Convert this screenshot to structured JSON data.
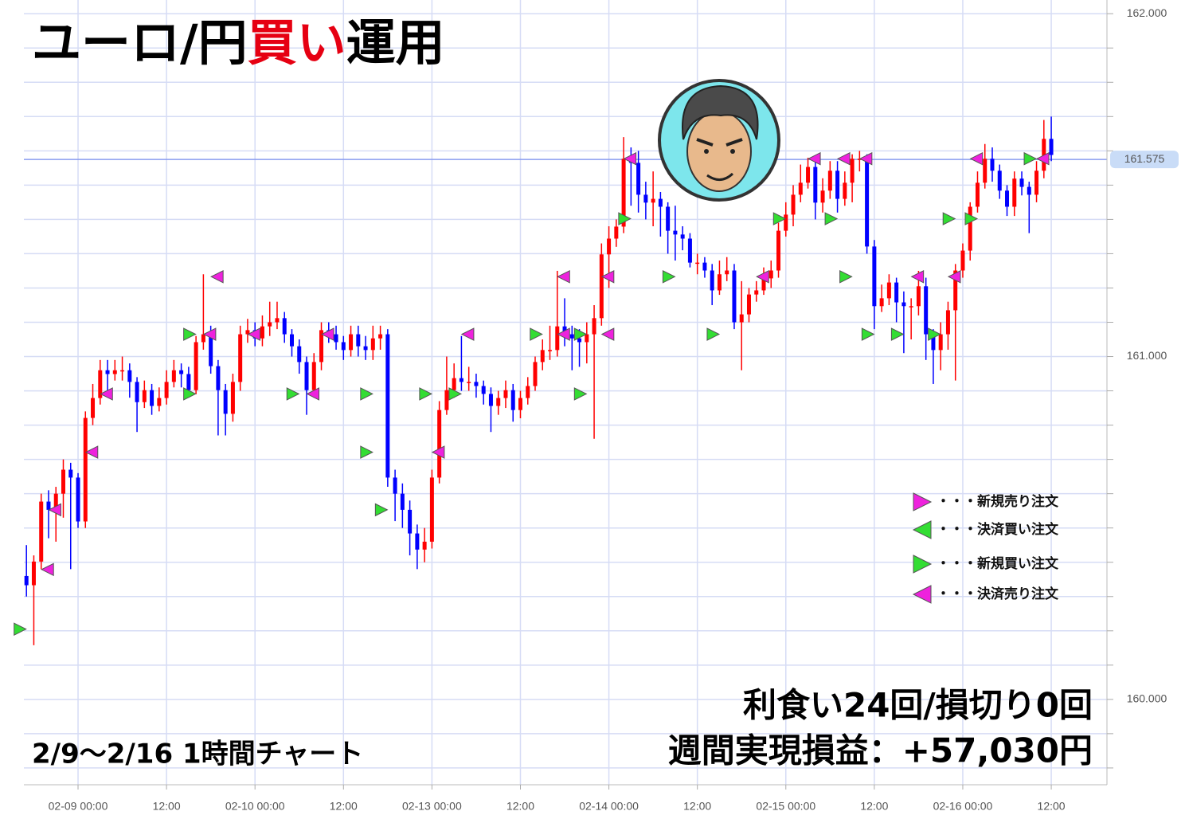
{
  "chart_data": {
    "type": "candlestick",
    "title": [
      {
        "text": "ユーロ/円",
        "color": "#000000"
      },
      {
        "text": "買い",
        "color": "#e60012"
      },
      {
        "text": "運用",
        "color": "#000000"
      }
    ],
    "annotations": [
      "利食い24回/損切り0回",
      "週間実現損益：+57,030円",
      "2/9～2/16 1時間チャート"
    ],
    "categories": [
      null,
      null,
      null,
      null,
      null,
      null,
      null,
      "02-09 00:00",
      null,
      null,
      null,
      null,
      null,
      null,
      null,
      null,
      null,
      null,
      null,
      "12:00",
      null,
      null,
      null,
      null,
      null,
      null,
      null,
      null,
      null,
      null,
      null,
      "02-10 00:00",
      null,
      null,
      null,
      null,
      null,
      null,
      null,
      null,
      null,
      null,
      null,
      "12:00",
      null,
      null,
      null,
      null,
      null,
      null,
      null,
      null,
      null,
      null,
      null,
      "02-13 00:00",
      null,
      null,
      null,
      null,
      null,
      null,
      null,
      null,
      null,
      null,
      null,
      "12:00",
      null,
      null,
      null,
      null,
      null,
      null,
      null,
      null,
      null,
      null,
      null,
      "02-14 00:00",
      null,
      null,
      null,
      null,
      null,
      null,
      null,
      null,
      null,
      null,
      null,
      "12:00",
      null,
      null,
      null,
      null,
      null,
      null,
      null,
      null,
      null,
      null,
      null,
      "02-15 00:00",
      null,
      null,
      null,
      null,
      null,
      null,
      null,
      null,
      null,
      null,
      null,
      "12:00",
      null,
      null,
      null,
      null,
      null,
      null,
      null,
      null,
      null,
      null,
      null,
      "02-16 00:00",
      null,
      null,
      null,
      null,
      null,
      null,
      null,
      null,
      null,
      null,
      null,
      "12:00"
    ],
    "open": [
      160.36,
      160.333,
      160.402,
      160.577,
      160.553,
      160.6,
      160.67,
      160.647,
      160.519,
      160.821,
      160.879,
      160.96,
      160.949,
      160.96,
      160.96,
      160.926,
      160.867,
      160.902,
      160.856,
      160.879,
      160.926,
      160.96,
      160.949,
      160.902,
      161.042,
      161.065,
      160.972,
      160.902,
      160.833,
      160.926,
      161.065,
      161.077,
      161.053,
      161.088,
      161.1,
      161.112,
      161.065,
      161.03,
      160.984,
      160.902,
      160.984,
      161.077,
      161.065,
      161.042,
      161.019,
      161.065,
      161.03,
      161.019,
      161.053,
      161.065,
      160.647,
      160.6,
      160.553,
      160.484,
      160.437,
      160.46,
      160.647,
      160.844,
      160.902,
      160.937,
      160.926,
      160.926,
      160.914,
      160.891,
      160.856,
      160.879,
      160.902,
      160.844,
      160.879,
      160.914,
      160.984,
      161.019,
      161.019,
      161.088,
      161.065,
      161.053,
      161.042,
      161.065,
      161.112,
      161.298,
      161.344,
      161.379,
      161.577,
      161.565,
      161.472,
      161.449,
      161.46,
      161.437,
      161.367,
      161.356,
      161.344,
      161.274,
      161.274,
      161.251,
      161.193,
      161.24,
      161.251,
      161.1,
      161.123,
      161.181,
      161.193,
      161.228,
      161.251,
      161.367,
      161.414,
      161.472,
      161.507,
      161.553,
      161.449,
      161.484,
      161.542,
      161.46,
      161.507,
      161.577,
      161.577,
      161.321,
      161.147,
      161.17,
      161.216,
      161.158,
      161.147,
      161.147,
      161.205,
      161.065,
      161.019,
      161.065,
      161.135,
      161.251,
      161.309,
      161.437,
      161.507,
      161.577,
      161.542,
      161.484,
      161.437,
      161.519,
      161.495,
      161.472,
      161.542,
      161.635
    ],
    "high": [
      160.45,
      160.42,
      160.6,
      160.61,
      160.62,
      160.7,
      160.69,
      160.66,
      160.84,
      160.92,
      160.99,
      160.99,
      160.99,
      161.0,
      160.98,
      160.94,
      160.93,
      160.92,
      160.91,
      160.96,
      160.99,
      160.98,
      160.97,
      161.06,
      161.24,
      161.09,
      160.99,
      160.92,
      160.95,
      161.09,
      161.11,
      161.1,
      161.12,
      161.16,
      161.16,
      161.13,
      161.08,
      161.05,
      161.0,
      161.01,
      161.1,
      161.1,
      161.09,
      161.06,
      161.09,
      161.09,
      161.06,
      161.09,
      161.09,
      161.08,
      160.67,
      160.63,
      160.58,
      160.51,
      160.5,
      160.67,
      160.87,
      161.0,
      160.98,
      161.06,
      160.97,
      160.95,
      160.93,
      160.91,
      160.9,
      160.93,
      160.92,
      160.9,
      160.94,
      161.0,
      161.05,
      161.09,
      161.25,
      161.17,
      161.09,
      161.08,
      161.1,
      161.15,
      161.33,
      161.38,
      161.4,
      161.64,
      161.61,
      161.6,
      161.51,
      161.54,
      161.48,
      161.45,
      161.44,
      161.38,
      161.36,
      161.3,
      161.29,
      161.27,
      161.28,
      161.29,
      161.27,
      161.22,
      161.2,
      161.22,
      161.26,
      161.28,
      161.39,
      161.45,
      161.5,
      161.56,
      161.58,
      161.57,
      161.52,
      161.57,
      161.57,
      161.54,
      161.59,
      161.6,
      161.59,
      161.34,
      161.21,
      161.24,
      161.23,
      161.19,
      161.17,
      161.25,
      161.23,
      161.08,
      161.1,
      161.16,
      161.27,
      161.33,
      161.45,
      161.54,
      161.62,
      161.61,
      161.56,
      161.5,
      161.54,
      161.54,
      161.51,
      161.57,
      161.69,
      161.7
    ],
    "low": [
      160.3,
      160.158,
      160.38,
      160.47,
      160.46,
      160.53,
      160.38,
      160.5,
      160.5,
      160.8,
      160.86,
      160.9,
      160.93,
      160.93,
      160.88,
      160.78,
      160.85,
      160.83,
      160.84,
      160.86,
      160.91,
      160.91,
      160.88,
      160.89,
      161.02,
      160.95,
      160.77,
      160.77,
      160.81,
      160.9,
      161.04,
      161.03,
      161.03,
      161.06,
      161.08,
      161.04,
      161.0,
      160.95,
      160.83,
      160.88,
      160.96,
      161.04,
      161.02,
      160.99,
      161.0,
      161.0,
      160.99,
      160.99,
      161.02,
      160.62,
      160.52,
      160.5,
      160.42,
      160.38,
      160.4,
      160.44,
      160.63,
      160.83,
      160.88,
      160.9,
      160.9,
      160.88,
      160.86,
      160.78,
      160.83,
      160.85,
      160.81,
      160.82,
      160.86,
      160.9,
      160.96,
      160.99,
      161.0,
      161.03,
      160.96,
      160.97,
      160.98,
      160.76,
      161.09,
      161.2,
      161.32,
      161.36,
      161.44,
      161.42,
      161.4,
      161.38,
      161.35,
      161.3,
      161.28,
      161.31,
      161.26,
      161.24,
      161.23,
      161.15,
      161.18,
      161.22,
      161.08,
      160.96,
      161.1,
      161.16,
      161.18,
      161.2,
      161.23,
      161.35,
      161.38,
      161.45,
      161.49,
      161.4,
      161.42,
      161.46,
      161.42,
      161.44,
      161.45,
      161.54,
      161.3,
      161.08,
      161.13,
      161.15,
      161.1,
      161.01,
      161.05,
      161.12,
      160.99,
      160.92,
      160.96,
      161.02,
      160.93,
      161.23,
      161.28,
      161.42,
      161.49,
      161.51,
      161.46,
      161.41,
      161.41,
      161.47,
      161.36,
      161.45,
      161.52,
      161.57
    ],
    "close": [
      160.333,
      160.402,
      160.577,
      160.553,
      160.6,
      160.67,
      160.647,
      160.519,
      160.821,
      160.879,
      160.96,
      160.949,
      160.96,
      160.96,
      160.926,
      160.867,
      160.902,
      160.856,
      160.879,
      160.926,
      160.96,
      160.949,
      160.902,
      161.042,
      161.065,
      160.972,
      160.902,
      160.833,
      160.926,
      161.065,
      161.077,
      161.053,
      161.088,
      161.1,
      161.112,
      161.065,
      161.03,
      160.984,
      160.902,
      160.984,
      161.077,
      161.065,
      161.042,
      161.019,
      161.065,
      161.03,
      161.019,
      161.053,
      161.065,
      160.647,
      160.6,
      160.553,
      160.484,
      160.437,
      160.46,
      160.647,
      160.844,
      160.902,
      160.937,
      160.926,
      160.926,
      160.914,
      160.891,
      160.856,
      160.879,
      160.902,
      160.844,
      160.879,
      160.914,
      160.984,
      161.019,
      161.019,
      161.088,
      161.065,
      161.053,
      161.042,
      161.065,
      161.112,
      161.298,
      161.344,
      161.379,
      161.577,
      161.565,
      161.472,
      161.449,
      161.46,
      161.437,
      161.367,
      161.356,
      161.344,
      161.274,
      161.274,
      161.251,
      161.193,
      161.24,
      161.251,
      161.1,
      161.123,
      161.181,
      161.193,
      161.228,
      161.251,
      161.367,
      161.414,
      161.472,
      161.507,
      161.553,
      161.449,
      161.484,
      161.542,
      161.46,
      161.507,
      161.577,
      161.577,
      161.321,
      161.147,
      161.17,
      161.216,
      161.158,
      161.147,
      161.147,
      161.205,
      161.065,
      161.019,
      161.065,
      161.135,
      161.251,
      161.309,
      161.437,
      161.507,
      161.577,
      161.542,
      161.484,
      161.437,
      161.519,
      161.495,
      161.472,
      161.542,
      161.635,
      161.588
    ],
    "up_color": "#ff0000",
    "down_color": "#0000ff",
    "signals": [
      {
        "name": "・・・新規売り注文",
        "color": "#ee22dd",
        "direction": "right",
        "index": [],
        "price": []
      },
      {
        "name": "・・・決済買い注文",
        "color": "#33dd33",
        "direction": "left",
        "index": [],
        "price": []
      },
      {
        "name": "・・・新規買い注文",
        "color": "#33dd33",
        "direction": "right",
        "index": [
          0,
          23,
          23,
          37,
          47,
          47,
          49,
          55,
          59,
          70,
          76,
          76,
          82,
          88,
          94,
          103,
          110,
          112,
          115,
          119,
          124,
          126,
          129,
          137
        ],
        "price": [
          160.205,
          161.065,
          160.891,
          160.891,
          160.891,
          160.721,
          160.553,
          160.891,
          160.891,
          161.065,
          161.065,
          160.891,
          161.402,
          161.233,
          161.065,
          161.402,
          161.402,
          161.233,
          161.065,
          161.065,
          161.065,
          161.402,
          161.402,
          161.577
        ]
      },
      {
        "name": "・・・決済売り注文",
        "color": "#ee22dd",
        "direction": "left",
        "index": [
          2,
          3,
          8,
          10,
          24,
          25,
          30,
          38,
          40,
          55,
          59,
          72,
          72,
          78,
          78,
          81,
          99,
          106,
          110,
          113,
          120,
          125,
          128,
          137
        ],
        "price": [
          160.379,
          160.553,
          160.721,
          160.891,
          161.065,
          161.233,
          161.065,
          160.891,
          161.065,
          160.721,
          161.065,
          161.065,
          161.233,
          161.065,
          161.233,
          161.577,
          161.233,
          161.577,
          161.577,
          161.577,
          161.233,
          161.233,
          161.577,
          161.577
        ]
      }
    ],
    "last_price": 161.575,
    "ylim": [
      159.751,
      162.04
    ],
    "yticks": [
      {
        "value": 160,
        "label": "160.000"
      },
      {
        "value": 161,
        "label": "161.000"
      },
      {
        "value": 162,
        "label": "162.000"
      }
    ],
    "minor_yticks": [
      159.8,
      159.9,
      160.1,
      160.2,
      160.3,
      160.4,
      160.5,
      160.6,
      160.7,
      160.8,
      160.9,
      161.1,
      161.2,
      161.3,
      161.4,
      161.5,
      161.6,
      161.7,
      161.8,
      161.9
    ],
    "grid": true
  }
}
